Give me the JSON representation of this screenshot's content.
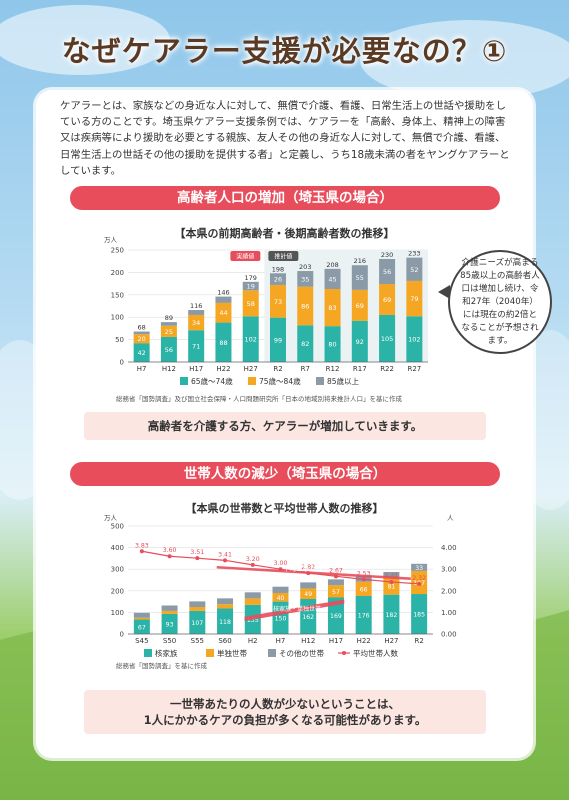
{
  "title": "なぜケアラー支援が必要なの？①",
  "intro": "ケアラーとは、家族などの身近な人に対して、無償で介護、看護、日常生活上の世話や援助をしている方のことです。埼玉県ケアラー支援条例では、ケアラーを「高齢、身体上、精神上の障害又は疾病等により援助を必要とする親族、友人その他の身近な人に対して、無償で介護、看護、日常生活上の世話その他の援助を提供する者」と定義し、うち18歳未満の者をヤングケアラーとしています。",
  "section1": {
    "heading": "高齢者人口の増加（埼玉県の場合）",
    "chart_title": "【本県の前期高齢者・後期高齢者数の推移】",
    "source": "総務省「国勢調査」及び国立社会保障・人口問題研究所「日本の地域別将来推計人口」を基に作成",
    "conclusion": "高齢者を介護する方、ケアラーが増加していきます。",
    "callout": "介護ニーズが高まる85歳以上の高齢者人口は増加し続け、令和27年（2040年）には現在の約2倍となることが予想されます。"
  },
  "section2": {
    "heading": "世帯人数の減少（埼玉県の場合）",
    "chart_title": "【本県の世帯数と平均世帯人数の推移】",
    "source": "総務省「国勢調査」を基に作成",
    "conclusion_line1": "一世帯あたりの人数が少ないということは、",
    "conclusion_line2": "1人にかかるケアの負担が多くなる可能性があります。"
  },
  "chart_data": [
    {
      "type": "bar",
      "stacked": true,
      "unit": "万人",
      "categories": [
        "H7",
        "H12",
        "H17",
        "H22",
        "H27",
        "R2",
        "R7",
        "R12",
        "R17",
        "R22",
        "R27"
      ],
      "series": [
        {
          "name": "65歳～74歳",
          "color": "#2ab3a6",
          "values": [
            42,
            56,
            71,
            88,
            102,
            99,
            82,
            80,
            92,
            105,
            102
          ]
        },
        {
          "name": "75歳～84歳",
          "color": "#f5a623",
          "values": [
            20,
            25,
            34,
            44,
            58,
            73,
            86,
            83,
            69,
            69,
            79
          ]
        },
        {
          "name": "85歳以上",
          "color": "#8a9aa6",
          "values": [
            6,
            8,
            11,
            14,
            19,
            26,
            35,
            45,
            55,
            56,
            52
          ]
        }
      ],
      "totals": [
        68,
        89,
        116,
        146,
        179,
        198,
        203,
        208,
        216,
        230,
        233
      ],
      "ylim": [
        0,
        250
      ],
      "yticks": [
        0,
        50,
        100,
        150,
        200,
        250
      ],
      "annotations": [
        "実績値",
        "推計値"
      ]
    },
    {
      "type": "bar",
      "stacked": true,
      "unit_left": "万人",
      "unit_right": "人",
      "categories": [
        "S45",
        "S50",
        "S55",
        "S60",
        "H2",
        "H7",
        "H12",
        "H17",
        "H22",
        "H27",
        "R2"
      ],
      "series": [
        {
          "name": "核家族",
          "color": "#2ab3a6",
          "values": [
            67,
            93,
            107,
            118,
            135,
            150,
            162,
            169,
            176,
            182,
            185
          ]
        },
        {
          "name": "単独世帯",
          "color": "#f5a623",
          "values": [
            8,
            14,
            18,
            20,
            30,
            40,
            49,
            57,
            66,
            81,
            107
          ]
        },
        {
          "name": "その他の世帯",
          "color": "#8a9aa6",
          "values": [
            23,
            25,
            26,
            27,
            28,
            29,
            28,
            27,
            26,
            24,
            33
          ]
        },
        {
          "name": "平均世帯人数",
          "color": "#e84d5b",
          "type": "line",
          "axis": "right",
          "values": [
            3.83,
            3.6,
            3.51,
            3.41,
            3.2,
            3.0,
            2.82,
            2.67,
            2.53,
            2.41,
            2.32
          ]
        }
      ],
      "ylim_left": [
        0,
        500
      ],
      "yticks_left": [
        0,
        100,
        200,
        300,
        400,
        500
      ],
      "ylim_right": [
        0,
        5
      ],
      "yticks_right": [
        "0.00",
        "1.00",
        "2.00",
        "3.00",
        "4.00"
      ],
      "annotations": [
        "平均世帯人数",
        "核家族・単独世帯"
      ]
    }
  ]
}
